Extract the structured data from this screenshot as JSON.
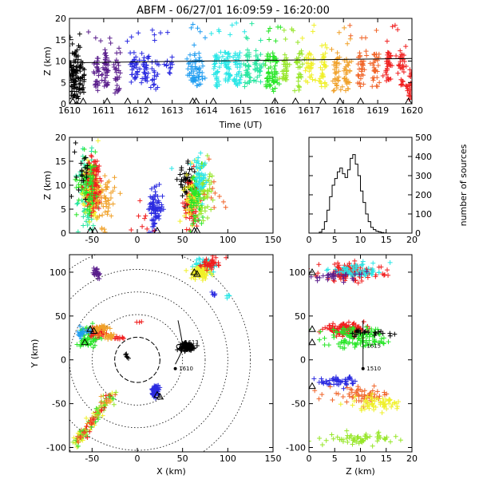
{
  "chart_title": "ABFM - 06/27/01 16:09:59 - 16:20:00",
  "colors": {
    "series": [
      "#000000",
      "#5a1e8c",
      "#2a2ae0",
      "#1e9cf0",
      "#28e6e6",
      "#28e6a0",
      "#28e628",
      "#96e628",
      "#f0f028",
      "#f0a028",
      "#f06428",
      "#f01e1e"
    ]
  },
  "chart_data": [
    {
      "id": "time-height",
      "type": "scatter",
      "title": "",
      "xlabel": "Time (UT)",
      "ylabel": "Z (km)",
      "xlim": [
        1610,
        1620
      ],
      "ylim": [
        0,
        20
      ],
      "x_ticks": [
        "1610",
        "1611",
        "1612",
        "1613",
        "1614",
        "1615",
        "1616",
        "1617",
        "1618",
        "1619",
        "1620"
      ],
      "y_ticks": [
        "0",
        "5",
        "10",
        "15",
        "20"
      ],
      "trend_line": {
        "x": [
          1610,
          1620
        ],
        "y": [
          9.6,
          10.6
        ]
      },
      "station_markers_x": [
        1610.1,
        1610.4,
        1611.1,
        1611.7,
        1612.3,
        1613.6,
        1613.7,
        1614.2,
        1616.0,
        1616.6,
        1617.4,
        1617.9,
        1618.5,
        1619.9
      ]
    },
    {
      "id": "xz-projection",
      "type": "scatter",
      "title": "",
      "xlabel": "",
      "ylabel": "Z (km)",
      "xlim": [
        -75,
        150
      ],
      "ylim": [
        0,
        20
      ],
      "x_ticks": [
        "-50",
        "0",
        "50",
        "100",
        "150"
      ],
      "y_ticks": [
        "0",
        "5",
        "10",
        "15",
        "20"
      ],
      "station_markers_x": [
        -52,
        -47,
        22,
        63,
        66
      ]
    },
    {
      "id": "altitude-histogram",
      "type": "line",
      "title": "",
      "xlabel": "",
      "ylabel": "number of sources",
      "xlim": [
        0,
        20
      ],
      "ylim": [
        0,
        500
      ],
      "x_ticks": [
        "0",
        "5",
        "10",
        "15",
        "20"
      ],
      "y_ticks": [
        "0",
        "100",
        "200",
        "300",
        "400",
        "500"
      ],
      "x": [
        2.25,
        2.75,
        3.25,
        3.75,
        4.25,
        4.75,
        5.25,
        5.75,
        6.25,
        6.75,
        7.25,
        7.75,
        8.25,
        8.75,
        9.25,
        9.75,
        10.25,
        10.75,
        11.25,
        11.75,
        12.25,
        12.75,
        13.25,
        13.75,
        14.25,
        14.75,
        15.25
      ],
      "values": [
        5,
        20,
        60,
        120,
        190,
        250,
        285,
        320,
        340,
        310,
        290,
        330,
        390,
        410,
        360,
        300,
        220,
        160,
        100,
        60,
        30,
        18,
        10,
        6,
        3,
        1,
        0
      ]
    },
    {
      "id": "plan-view",
      "type": "scatter",
      "title": "",
      "xlabel": "X (km)",
      "ylabel": "Y (km)",
      "xlim": [
        -75,
        150
      ],
      "ylim": [
        -105,
        120
      ],
      "x_ticks": [
        "-50",
        "0",
        "50",
        "100",
        "150"
      ],
      "y_ticks": [
        "-100",
        "-50",
        "0",
        "50",
        "100"
      ],
      "ring_radii_km": [
        25,
        50,
        75,
        100,
        125
      ],
      "track_labels": [
        "1613",
        "1610"
      ],
      "station_markers": [
        [
          -52,
          35
        ],
        [
          -48,
          33
        ],
        [
          -58,
          20
        ],
        [
          22,
          -40
        ],
        [
          25,
          -42
        ],
        [
          63,
          100
        ],
        [
          66,
          98
        ]
      ]
    },
    {
      "id": "zy-projection",
      "type": "scatter",
      "title": "",
      "xlabel": "Z (km)",
      "ylabel": "",
      "xlim": [
        0,
        20
      ],
      "ylim": [
        -105,
        120
      ],
      "x_ticks": [
        "0",
        "5",
        "10",
        "15",
        "20"
      ],
      "y_ticks": [
        "-100",
        "-50",
        "0",
        "50",
        "100"
      ],
      "track_labels": [
        "1615",
        "1510"
      ],
      "station_markers_y": [
        100,
        35,
        20,
        -30
      ]
    }
  ]
}
